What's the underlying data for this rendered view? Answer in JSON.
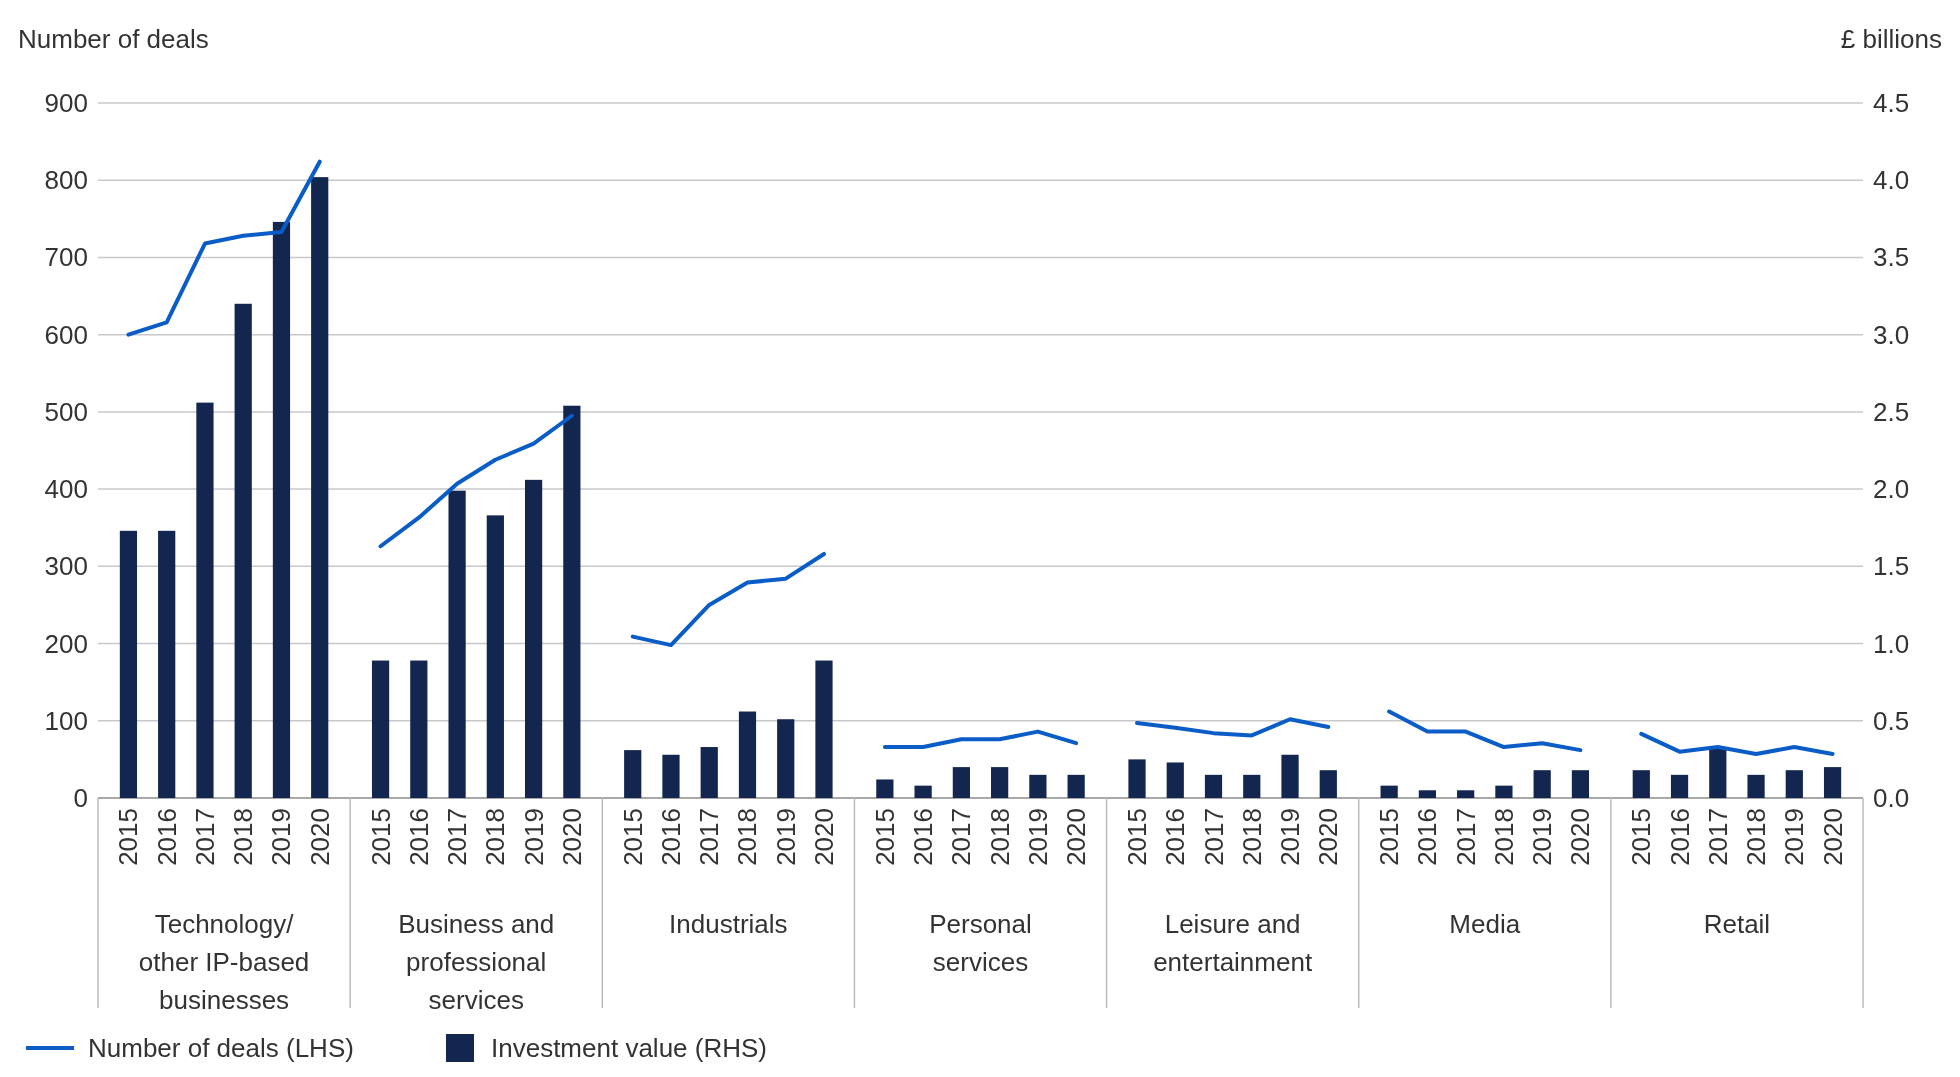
{
  "chart_data": [
    {
      "type": "bar",
      "xlabel": "Technology/ other IP-based businesses",
      "ylabel": "Number of deals",
      "categories": [
        "2015",
        "2016",
        "2017",
        "2018",
        "2019",
        "2020"
      ],
      "ylim": [
        0,
        900
      ],
      "yticks": [
        0,
        100,
        200,
        300,
        400,
        500,
        600,
        700,
        800,
        900
      ],
      "y2lim": [
        0,
        4.5
      ],
      "grid": "y",
      "legend": "bottom",
      "series": [
        {
          "name": "Investment value (RHS)",
          "axis": "y2",
          "color": "#13264f",
          "values": [
            1.73,
            1.73,
            2.56,
            3.2,
            3.73,
            4.02
          ]
        },
        {
          "name": "Number of deals (LHS)",
          "type": "line",
          "axis": "y",
          "color": "#0a5cc7",
          "values": [
            600,
            616,
            718,
            728,
            733,
            824
          ]
        }
      ]
    },
    {
      "type": "bar",
      "xlabel": "Business and professional services",
      "categories": [
        "2015",
        "2016",
        "2017",
        "2018",
        "2019",
        "2020"
      ],
      "ylim": [
        0,
        900
      ],
      "y2lim": [
        0,
        4.5
      ],
      "series": [
        {
          "axis": "y2",
          "color": "#13264f",
          "values": [
            0.89,
            0.89,
            1.99,
            1.83,
            2.06,
            2.54
          ]
        },
        {
          "type": "line",
          "axis": "y",
          "color": "#0a5cc7",
          "values": [
            326,
            363,
            407,
            438,
            459,
            495
          ]
        }
      ]
    },
    {
      "type": "bar",
      "xlabel": "Industrials",
      "categories": [
        "2015",
        "2016",
        "2017",
        "2018",
        "2019",
        "2020"
      ],
      "ylim": [
        0,
        900
      ],
      "y2lim": [
        0,
        4.5
      ],
      "series": [
        {
          "axis": "y2",
          "color": "#13264f",
          "values": [
            0.31,
            0.28,
            0.33,
            0.56,
            0.51,
            0.89
          ]
        },
        {
          "type": "line",
          "axis": "y",
          "color": "#0a5cc7",
          "values": [
            209,
            198,
            250,
            279,
            284,
            316
          ]
        }
      ]
    },
    {
      "type": "bar",
      "xlabel": "Personal services",
      "categories": [
        "2015",
        "2016",
        "2017",
        "2018",
        "2019",
        "2020"
      ],
      "ylim": [
        0,
        900
      ],
      "y2lim": [
        0,
        4.5
      ],
      "series": [
        {
          "axis": "y2",
          "color": "#13264f",
          "values": [
            0.12,
            0.08,
            0.2,
            0.2,
            0.15,
            0.15
          ]
        },
        {
          "type": "line",
          "axis": "y",
          "color": "#0a5cc7",
          "values": [
            66,
            66,
            76,
            76,
            86,
            71
          ]
        }
      ]
    },
    {
      "type": "bar",
      "xlabel": "Leisure and entertainment",
      "categories": [
        "2015",
        "2016",
        "2017",
        "2018",
        "2019",
        "2020"
      ],
      "ylim": [
        0,
        900
      ],
      "y2lim": [
        0,
        4.5
      ],
      "series": [
        {
          "axis": "y2",
          "color": "#13264f",
          "values": [
            0.25,
            0.23,
            0.15,
            0.15,
            0.28,
            0.18
          ]
        },
        {
          "type": "line",
          "axis": "y",
          "color": "#0a5cc7",
          "values": [
            97,
            91,
            84,
            81,
            102,
            92
          ]
        }
      ]
    },
    {
      "type": "bar",
      "xlabel": "Media",
      "categories": [
        "2015",
        "2016",
        "2017",
        "2018",
        "2019",
        "2020"
      ],
      "ylim": [
        0,
        900
      ],
      "y2lim": [
        0,
        4.5
      ],
      "series": [
        {
          "axis": "y2",
          "color": "#13264f",
          "values": [
            0.08,
            0.05,
            0.05,
            0.08,
            0.18,
            0.18
          ]
        },
        {
          "type": "line",
          "axis": "y",
          "color": "#0a5cc7",
          "values": [
            112,
            86,
            86,
            66,
            71,
            62
          ]
        }
      ]
    },
    {
      "type": "bar",
      "xlabel": "Retail",
      "y2label": "£ billions",
      "categories": [
        "2015",
        "2016",
        "2017",
        "2018",
        "2019",
        "2020"
      ],
      "ylim": [
        0,
        900
      ],
      "y2lim": [
        0,
        4.5
      ],
      "y2ticks": [
        {
          "value": 0,
          "label": "0.0"
        },
        0.5,
        {
          "value": 1,
          "label": "1.0"
        },
        1.5,
        {
          "value": 2,
          "label": "2.0"
        },
        2.5,
        {
          "value": 3,
          "label": "3.0"
        },
        3.5,
        {
          "value": 4,
          "label": "4.0"
        },
        4.5
      ],
      "series": [
        {
          "axis": "y2",
          "color": "#13264f",
          "values": [
            0.18,
            0.15,
            0.32,
            0.15,
            0.18,
            0.2
          ]
        },
        {
          "type": "line",
          "axis": "y",
          "color": "#0a5cc7",
          "values": [
            83,
            60,
            66,
            57,
            66,
            57
          ]
        }
      ]
    }
  ]
}
